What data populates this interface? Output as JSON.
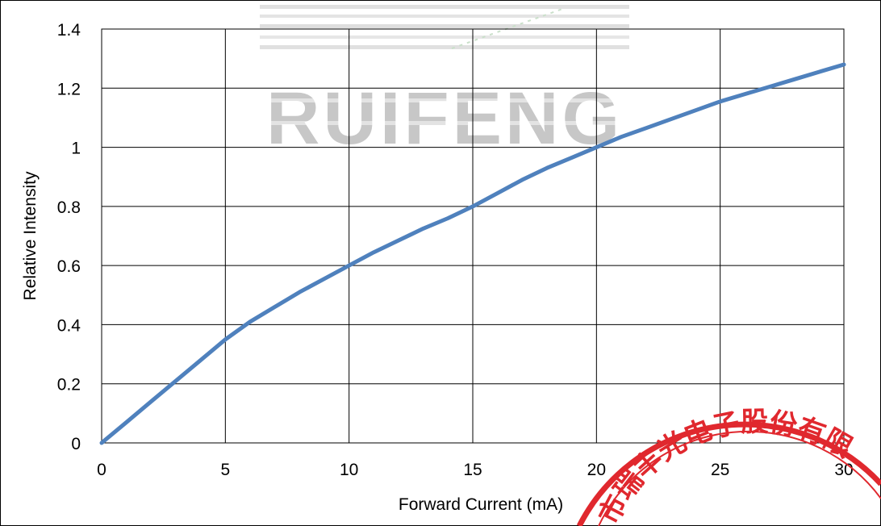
{
  "chart_data": {
    "type": "line",
    "title": "",
    "xlabel": "Forward Current (mA)",
    "ylabel": "Relative Intensity",
    "xlim": [
      0,
      30
    ],
    "ylim": [
      0,
      1.4
    ],
    "x_ticks": [
      "0",
      "5",
      "10",
      "15",
      "20",
      "25",
      "30"
    ],
    "y_ticks": [
      "0",
      "0.2",
      "0.4",
      "0.6",
      "0.8",
      "1",
      "1.2",
      "1.4"
    ],
    "grid": true,
    "legend": "none",
    "series": [
      {
        "color": "#4f81bd",
        "x": [
          0,
          1,
          2,
          3,
          4,
          5,
          6,
          7,
          8,
          9,
          10,
          11,
          12,
          13,
          14,
          15,
          16,
          17,
          18,
          19,
          20,
          21,
          22,
          23,
          24,
          25,
          26,
          27,
          28,
          29,
          30
        ],
        "y": [
          0,
          0.07,
          0.14,
          0.21,
          0.28,
          0.35,
          0.41,
          0.46,
          0.51,
          0.555,
          0.6,
          0.645,
          0.685,
          0.725,
          0.76,
          0.8,
          0.845,
          0.89,
          0.93,
          0.965,
          1.0,
          1.035,
          1.065,
          1.095,
          1.125,
          1.155,
          1.18,
          1.205,
          1.23,
          1.255,
          1.28
        ]
      }
    ]
  },
  "watermark": {
    "text": "RUIFENG",
    "color": "#b0b0b0"
  },
  "seal": {
    "text": "市瑞丰光电子股份有限",
    "color": "#e0282e"
  }
}
